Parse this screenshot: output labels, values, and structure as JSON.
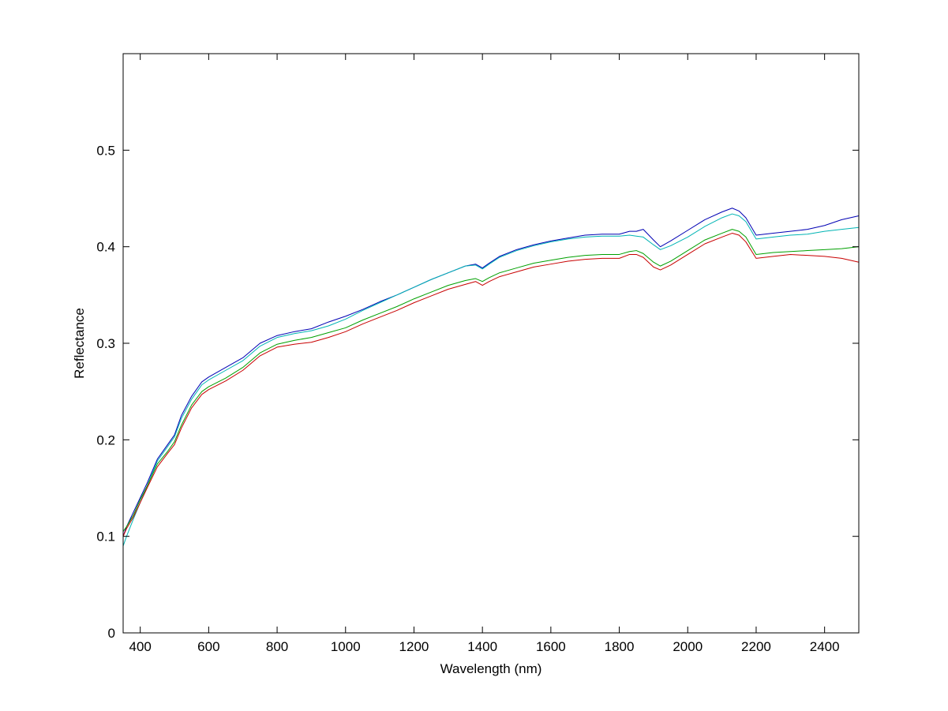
{
  "chart_data": {
    "type": "line",
    "title": "",
    "xlabel": "Wavelength (nm)",
    "ylabel": "Reflectance",
    "xlim": [
      350,
      2500
    ],
    "ylim": [
      0,
      0.6
    ],
    "x_ticks": [
      400,
      600,
      800,
      1000,
      1200,
      1400,
      1600,
      1800,
      2000,
      2200,
      2400
    ],
    "y_ticks": [
      0,
      0.1,
      0.2,
      0.3,
      0.4,
      0.5
    ],
    "x_tick_labels": [
      "400",
      "600",
      "800",
      "1000",
      "1200",
      "1400",
      "1600",
      "1800",
      "2000",
      "2200",
      "2400"
    ],
    "y_tick_labels": [
      "0",
      "0.1",
      "0.2",
      "0.3",
      "0.4",
      "0.5"
    ],
    "grid": false,
    "legend": "none",
    "series": [
      {
        "color": "#0000b4",
        "x": [
          350,
          360,
          380,
          400,
          420,
          450,
          480,
          500,
          520,
          550,
          580,
          600,
          650,
          700,
          750,
          800,
          850,
          900,
          950,
          1000,
          1050,
          1100,
          1150,
          1200,
          1250,
          1300,
          1350,
          1380,
          1400,
          1420,
          1450,
          1500,
          1550,
          1600,
          1650,
          1700,
          1750,
          1800,
          1830,
          1850,
          1870,
          1900,
          1920,
          1950,
          2000,
          2050,
          2100,
          2130,
          2150,
          2170,
          2200,
          2250,
          2300,
          2350,
          2400,
          2450,
          2500
        ],
        "values": [
          0.1,
          0.11,
          0.125,
          0.14,
          0.155,
          0.18,
          0.195,
          0.205,
          0.225,
          0.245,
          0.26,
          0.265,
          0.275,
          0.285,
          0.3,
          0.308,
          0.312,
          0.315,
          0.322,
          0.328,
          0.335,
          0.343,
          0.35,
          0.358,
          0.366,
          0.373,
          0.38,
          0.382,
          0.378,
          0.383,
          0.39,
          0.397,
          0.402,
          0.406,
          0.409,
          0.412,
          0.413,
          0.413,
          0.416,
          0.416,
          0.418,
          0.407,
          0.4,
          0.406,
          0.417,
          0.428,
          0.436,
          0.44,
          0.437,
          0.43,
          0.412,
          0.414,
          0.416,
          0.418,
          0.422,
          0.428,
          0.432
        ]
      },
      {
        "color": "#00b4b4",
        "x": [
          350,
          360,
          380,
          400,
          420,
          450,
          480,
          500,
          520,
          550,
          580,
          600,
          650,
          700,
          750,
          800,
          850,
          900,
          950,
          1000,
          1050,
          1100,
          1150,
          1200,
          1250,
          1300,
          1350,
          1380,
          1400,
          1420,
          1450,
          1500,
          1550,
          1600,
          1650,
          1700,
          1750,
          1800,
          1830,
          1850,
          1870,
          1900,
          1920,
          1950,
          2000,
          2050,
          2100,
          2130,
          2150,
          2170,
          2200,
          2250,
          2300,
          2350,
          2400,
          2450,
          2500
        ],
        "values": [
          0.09,
          0.1,
          0.118,
          0.135,
          0.152,
          0.178,
          0.193,
          0.203,
          0.222,
          0.242,
          0.257,
          0.262,
          0.272,
          0.282,
          0.297,
          0.306,
          0.31,
          0.313,
          0.318,
          0.325,
          0.334,
          0.342,
          0.35,
          0.358,
          0.366,
          0.373,
          0.38,
          0.381,
          0.377,
          0.382,
          0.389,
          0.396,
          0.401,
          0.405,
          0.408,
          0.41,
          0.411,
          0.411,
          0.412,
          0.411,
          0.41,
          0.402,
          0.397,
          0.401,
          0.41,
          0.421,
          0.43,
          0.434,
          0.432,
          0.426,
          0.408,
          0.41,
          0.412,
          0.413,
          0.416,
          0.418,
          0.42
        ]
      },
      {
        "color": "#00a000",
        "x": [
          350,
          360,
          380,
          400,
          420,
          450,
          480,
          500,
          520,
          550,
          580,
          600,
          650,
          700,
          750,
          800,
          850,
          900,
          950,
          1000,
          1050,
          1100,
          1150,
          1200,
          1250,
          1300,
          1350,
          1380,
          1400,
          1420,
          1450,
          1500,
          1550,
          1600,
          1650,
          1700,
          1750,
          1800,
          1830,
          1850,
          1870,
          1900,
          1920,
          1950,
          2000,
          2050,
          2100,
          2130,
          2150,
          2170,
          2200,
          2250,
          2300,
          2350,
          2400,
          2450,
          2500
        ],
        "values": [
          0.105,
          0.11,
          0.122,
          0.138,
          0.152,
          0.175,
          0.188,
          0.198,
          0.215,
          0.236,
          0.25,
          0.255,
          0.264,
          0.275,
          0.29,
          0.299,
          0.303,
          0.306,
          0.311,
          0.316,
          0.324,
          0.331,
          0.338,
          0.346,
          0.353,
          0.36,
          0.365,
          0.367,
          0.364,
          0.368,
          0.373,
          0.378,
          0.383,
          0.386,
          0.389,
          0.391,
          0.392,
          0.392,
          0.395,
          0.396,
          0.393,
          0.384,
          0.38,
          0.385,
          0.396,
          0.407,
          0.414,
          0.418,
          0.416,
          0.41,
          0.392,
          0.394,
          0.395,
          0.396,
          0.397,
          0.398,
          0.4
        ]
      },
      {
        "color": "#c80000",
        "x": [
          350,
          360,
          380,
          400,
          420,
          450,
          480,
          500,
          520,
          550,
          580,
          600,
          650,
          700,
          750,
          800,
          850,
          900,
          950,
          1000,
          1050,
          1100,
          1150,
          1200,
          1250,
          1300,
          1350,
          1380,
          1400,
          1420,
          1450,
          1500,
          1550,
          1600,
          1650,
          1700,
          1750,
          1800,
          1830,
          1850,
          1870,
          1900,
          1920,
          1950,
          2000,
          2050,
          2100,
          2130,
          2150,
          2170,
          2200,
          2250,
          2300,
          2350,
          2400,
          2450,
          2500
        ],
        "values": [
          0.1,
          0.108,
          0.12,
          0.135,
          0.15,
          0.172,
          0.186,
          0.195,
          0.212,
          0.233,
          0.247,
          0.252,
          0.261,
          0.272,
          0.287,
          0.296,
          0.299,
          0.301,
          0.306,
          0.312,
          0.32,
          0.327,
          0.334,
          0.342,
          0.349,
          0.356,
          0.361,
          0.364,
          0.36,
          0.364,
          0.369,
          0.374,
          0.379,
          0.382,
          0.385,
          0.387,
          0.388,
          0.388,
          0.392,
          0.392,
          0.389,
          0.379,
          0.376,
          0.381,
          0.392,
          0.403,
          0.41,
          0.414,
          0.412,
          0.405,
          0.388,
          0.39,
          0.392,
          0.391,
          0.39,
          0.388,
          0.384
        ]
      }
    ]
  }
}
